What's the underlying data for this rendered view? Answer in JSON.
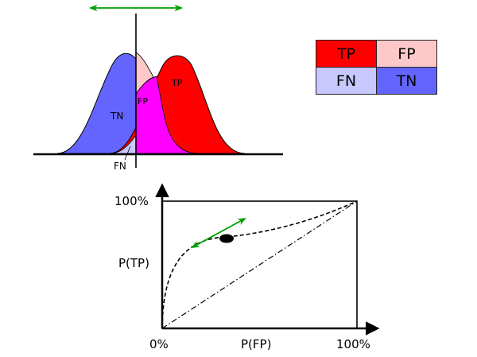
{
  "distributions": {
    "label_tn": "TN",
    "label_fp": "FP",
    "label_tp": "TP",
    "label_fn": "FN",
    "colors": {
      "negative_curve": "#6464ff",
      "positive_curve": "#ff0000",
      "overlap": "#ff00ff",
      "fp_region": "#ffc8c8",
      "fn_region": "#c8c8ff",
      "threshold_arrow": "#00a000"
    }
  },
  "confusion_matrix": {
    "cells": [
      {
        "label": "TP",
        "color": "#ff0000"
      },
      {
        "label": "FP",
        "color": "#ffc8c8"
      },
      {
        "label": "FN",
        "color": "#c8c8ff"
      },
      {
        "label": "TN",
        "color": "#6464ff"
      }
    ]
  },
  "roc": {
    "y_top_label": "100%",
    "y_axis_label": "P(TP)",
    "x_origin_label": "0%",
    "x_axis_label": "P(FP)",
    "x_right_label": "100%",
    "arrow_color": "#00a000"
  }
}
